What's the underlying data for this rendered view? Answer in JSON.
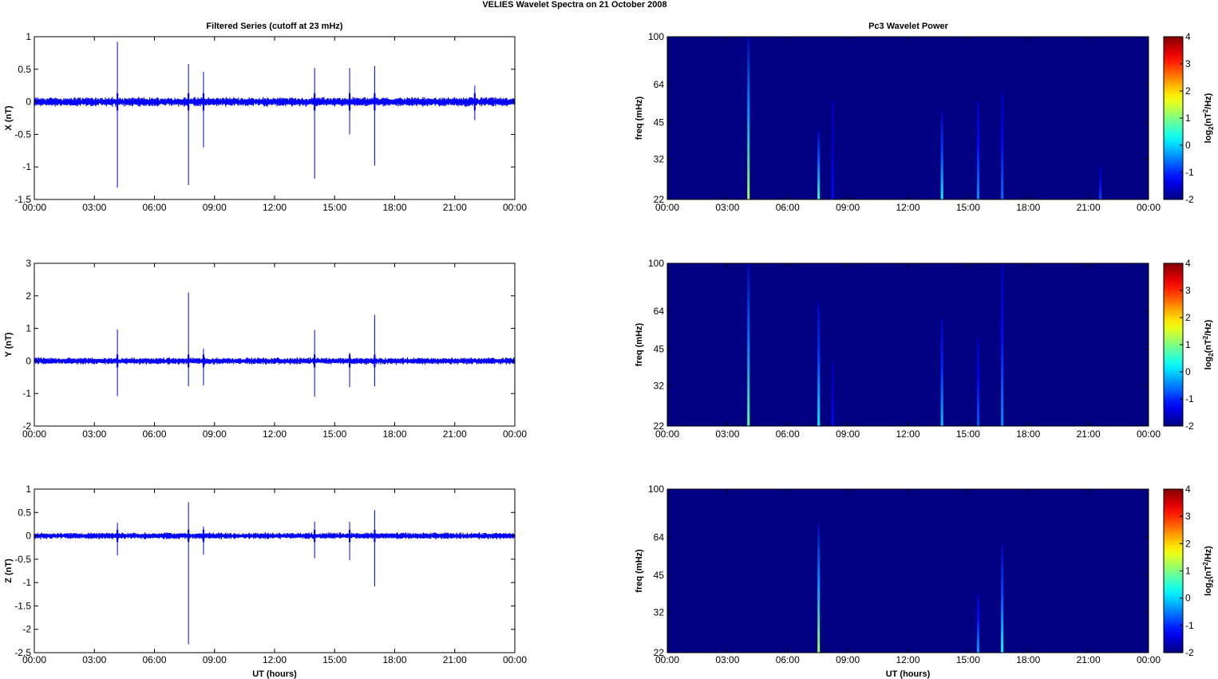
{
  "figure": {
    "title": "VELIES Wavelet Spectra on 21 October   2008",
    "left_title": "Filtered Series (cutoff at 23 mHz)",
    "right_title": "Pc3 Wavelet Power"
  },
  "chart_data": [
    {
      "type": "line",
      "panel": "x-series",
      "ylabel": "X (nT)",
      "xlabel": "",
      "ylim": [
        -1.5,
        1
      ],
      "yticks": [
        "1",
        "0.5",
        "0",
        "-0.5",
        "-1",
        "-1.5"
      ],
      "xlim": [
        0,
        24
      ],
      "xticks": [
        "00:00",
        "03:00",
        "06:00",
        "09:00",
        "12:00",
        "15:00",
        "18:00",
        "21:00",
        "00:00"
      ],
      "line_color": "#0000ff",
      "noise_amplitude": 0.06,
      "spikes": [
        {
          "t": 4.15,
          "max": 0.92,
          "min": -1.32
        },
        {
          "t": 7.7,
          "max": 0.58,
          "min": -1.28
        },
        {
          "t": 8.45,
          "max": 0.46,
          "min": -0.7
        },
        {
          "t": 14.0,
          "max": 0.52,
          "min": -1.18
        },
        {
          "t": 15.75,
          "max": 0.52,
          "min": -0.5
        },
        {
          "t": 17.0,
          "max": 0.55,
          "min": -0.98
        },
        {
          "t": 22.0,
          "max": 0.25,
          "min": -0.28
        }
      ]
    },
    {
      "type": "line",
      "panel": "y-series",
      "ylabel": "Y (nT)",
      "xlabel": "",
      "ylim": [
        -2,
        3
      ],
      "yticks": [
        "3",
        "2",
        "1",
        "0",
        "-1",
        "-2"
      ],
      "xlim": [
        0,
        24
      ],
      "xticks": [
        "00:00",
        "03:00",
        "06:00",
        "09:00",
        "12:00",
        "15:00",
        "18:00",
        "21:00",
        "00:00"
      ],
      "line_color": "#0000ff",
      "noise_amplitude": 0.09,
      "spikes": [
        {
          "t": 4.15,
          "max": 0.97,
          "min": -1.08
        },
        {
          "t": 7.7,
          "max": 2.1,
          "min": -0.78
        },
        {
          "t": 8.45,
          "max": 0.38,
          "min": -0.75
        },
        {
          "t": 14.0,
          "max": 0.95,
          "min": -1.1
        },
        {
          "t": 15.75,
          "max": 0.25,
          "min": -0.8
        },
        {
          "t": 17.0,
          "max": 1.42,
          "min": -0.78
        }
      ]
    },
    {
      "type": "line",
      "panel": "z-series",
      "ylabel": "Z (nT)",
      "xlabel": "UT (hours)",
      "ylim": [
        -2.5,
        1
      ],
      "yticks": [
        "1",
        "0.5",
        "0",
        "-0.5",
        "-1",
        "-1.5",
        "-2",
        "-2.5"
      ],
      "xlim": [
        0,
        24
      ],
      "xticks": [
        "00:00",
        "03:00",
        "06:00",
        "09:00",
        "12:00",
        "15:00",
        "18:00",
        "21:00",
        "00:00"
      ],
      "line_color": "#0000ff",
      "noise_amplitude": 0.06,
      "spikes": [
        {
          "t": 4.15,
          "max": 0.28,
          "min": -0.42
        },
        {
          "t": 7.7,
          "max": 0.72,
          "min": -2.32
        },
        {
          "t": 8.45,
          "max": 0.2,
          "min": -0.4
        },
        {
          "t": 14.0,
          "max": 0.3,
          "min": -0.48
        },
        {
          "t": 15.75,
          "max": 0.3,
          "min": -0.52
        },
        {
          "t": 17.0,
          "max": 0.55,
          "min": -1.08
        }
      ]
    },
    {
      "type": "heatmap",
      "panel": "x-spectrum",
      "ylabel": "freq (mHz)",
      "xlabel": "",
      "ylim": [
        22,
        100
      ],
      "yscale": "log",
      "yticks": [
        "100",
        "64",
        "45",
        "32",
        "22"
      ],
      "xlim": [
        0,
        24
      ],
      "xticks": [
        "00:00",
        "03:00",
        "06:00",
        "09:00",
        "12:00",
        "15:00",
        "18:00",
        "21:00",
        "00:00"
      ],
      "background_level": -2,
      "colorbar": {
        "min": -2,
        "max": 4,
        "ticks": [
          "4",
          "3",
          "2",
          "1",
          "0",
          "-1",
          "-2"
        ],
        "label_base": "log",
        "label_sub": "2",
        "label_open": "(nT",
        "label_sup": "2",
        "label_close": "/Hz)"
      },
      "streaks": [
        {
          "t": 4.05,
          "f_top": 100,
          "level": 1.2
        },
        {
          "t": 7.55,
          "f_top": 42,
          "level": 0.6
        },
        {
          "t": 8.25,
          "f_top": 55,
          "level": -1.2
        },
        {
          "t": 13.7,
          "f_top": 50,
          "level": 0.2
        },
        {
          "t": 15.5,
          "f_top": 55,
          "level": -0.4
        },
        {
          "t": 16.7,
          "f_top": 60,
          "level": -0.6
        },
        {
          "t": 21.6,
          "f_top": 30,
          "level": -0.8
        }
      ]
    },
    {
      "type": "heatmap",
      "panel": "y-spectrum",
      "ylabel": "freq (mHz)",
      "xlabel": "",
      "ylim": [
        22,
        100
      ],
      "yscale": "log",
      "yticks": [
        "100",
        "64",
        "45",
        "32",
        "22"
      ],
      "xlim": [
        0,
        24
      ],
      "xticks": [
        "00:00",
        "03:00",
        "06:00",
        "09:00",
        "12:00",
        "15:00",
        "18:00",
        "21:00",
        "00:00"
      ],
      "background_level": -2,
      "colorbar": {
        "min": -2,
        "max": 4,
        "ticks": [
          "4",
          "3",
          "2",
          "1",
          "0",
          "-1",
          "-2"
        ],
        "label_base": "log",
        "label_sub": "2",
        "label_open": "(nT",
        "label_sup": "2",
        "label_close": "/Hz)"
      },
      "streaks": [
        {
          "t": 4.05,
          "f_top": 100,
          "level": 0.8
        },
        {
          "t": 7.55,
          "f_top": 70,
          "level": 0.2
        },
        {
          "t": 8.25,
          "f_top": 40,
          "level": -1.2
        },
        {
          "t": 13.7,
          "f_top": 60,
          "level": -0.1
        },
        {
          "t": 15.5,
          "f_top": 50,
          "level": -0.7
        },
        {
          "t": 16.7,
          "f_top": 100,
          "level": -0.4
        }
      ]
    },
    {
      "type": "heatmap",
      "panel": "z-spectrum",
      "ylabel": "freq (mHz)",
      "xlabel": "UT (hours)",
      "ylim": [
        22,
        100
      ],
      "yscale": "log",
      "yticks": [
        "100",
        "64",
        "45",
        "32",
        "22"
      ],
      "xlim": [
        0,
        24
      ],
      "xticks": [
        "00:00",
        "03:00",
        "06:00",
        "09:00",
        "12:00",
        "15:00",
        "18:00",
        "21:00",
        "00:00"
      ],
      "background_level": -2,
      "colorbar": {
        "min": -2,
        "max": 4,
        "ticks": [
          "4",
          "3",
          "2",
          "1",
          "0",
          "-1",
          "-2"
        ],
        "label_base": "log",
        "label_sub": "2",
        "label_open": "(nT",
        "label_sup": "2",
        "label_close": "/Hz)"
      },
      "streaks": [
        {
          "t": 7.55,
          "f_top": 72,
          "level": 1.2
        },
        {
          "t": 15.5,
          "f_top": 38,
          "level": -0.3
        },
        {
          "t": 16.7,
          "f_top": 60,
          "level": 0.3
        }
      ]
    }
  ]
}
